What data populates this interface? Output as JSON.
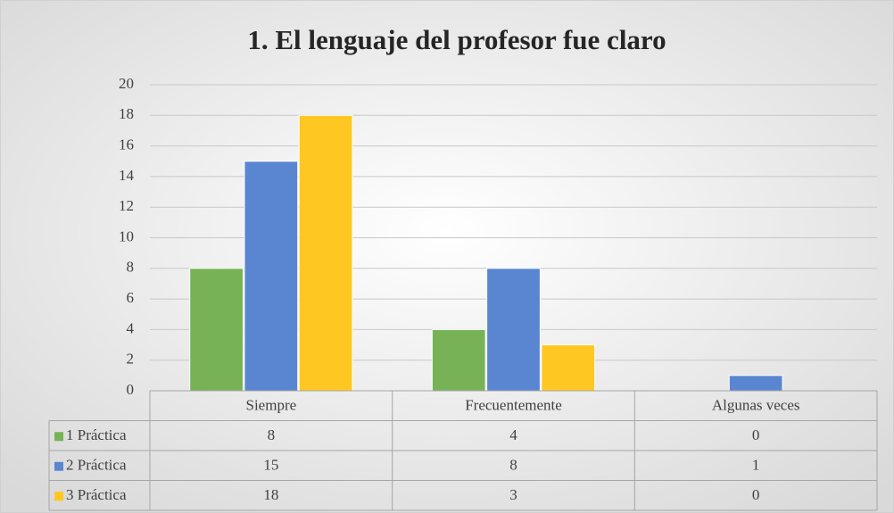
{
  "chart_data": {
    "type": "bar",
    "title": "1. El lenguaje del profesor fue claro",
    "categories": [
      "Siempre",
      "Frecuentemente",
      "Algunas veces"
    ],
    "series": [
      {
        "name": "1 Práctica",
        "color": "#77b356",
        "values": [
          8,
          4,
          0
        ]
      },
      {
        "name": "2 Práctica",
        "color": "#5a86d1",
        "values": [
          15,
          8,
          1
        ]
      },
      {
        "name": "3 Práctica",
        "color": "#fec721",
        "values": [
          18,
          3,
          0
        ]
      }
    ],
    "ylim": [
      0,
      20
    ],
    "yticks": [
      0,
      2,
      4,
      6,
      8,
      10,
      12,
      14,
      16,
      18,
      20
    ],
    "grid": true,
    "legend": "table"
  }
}
